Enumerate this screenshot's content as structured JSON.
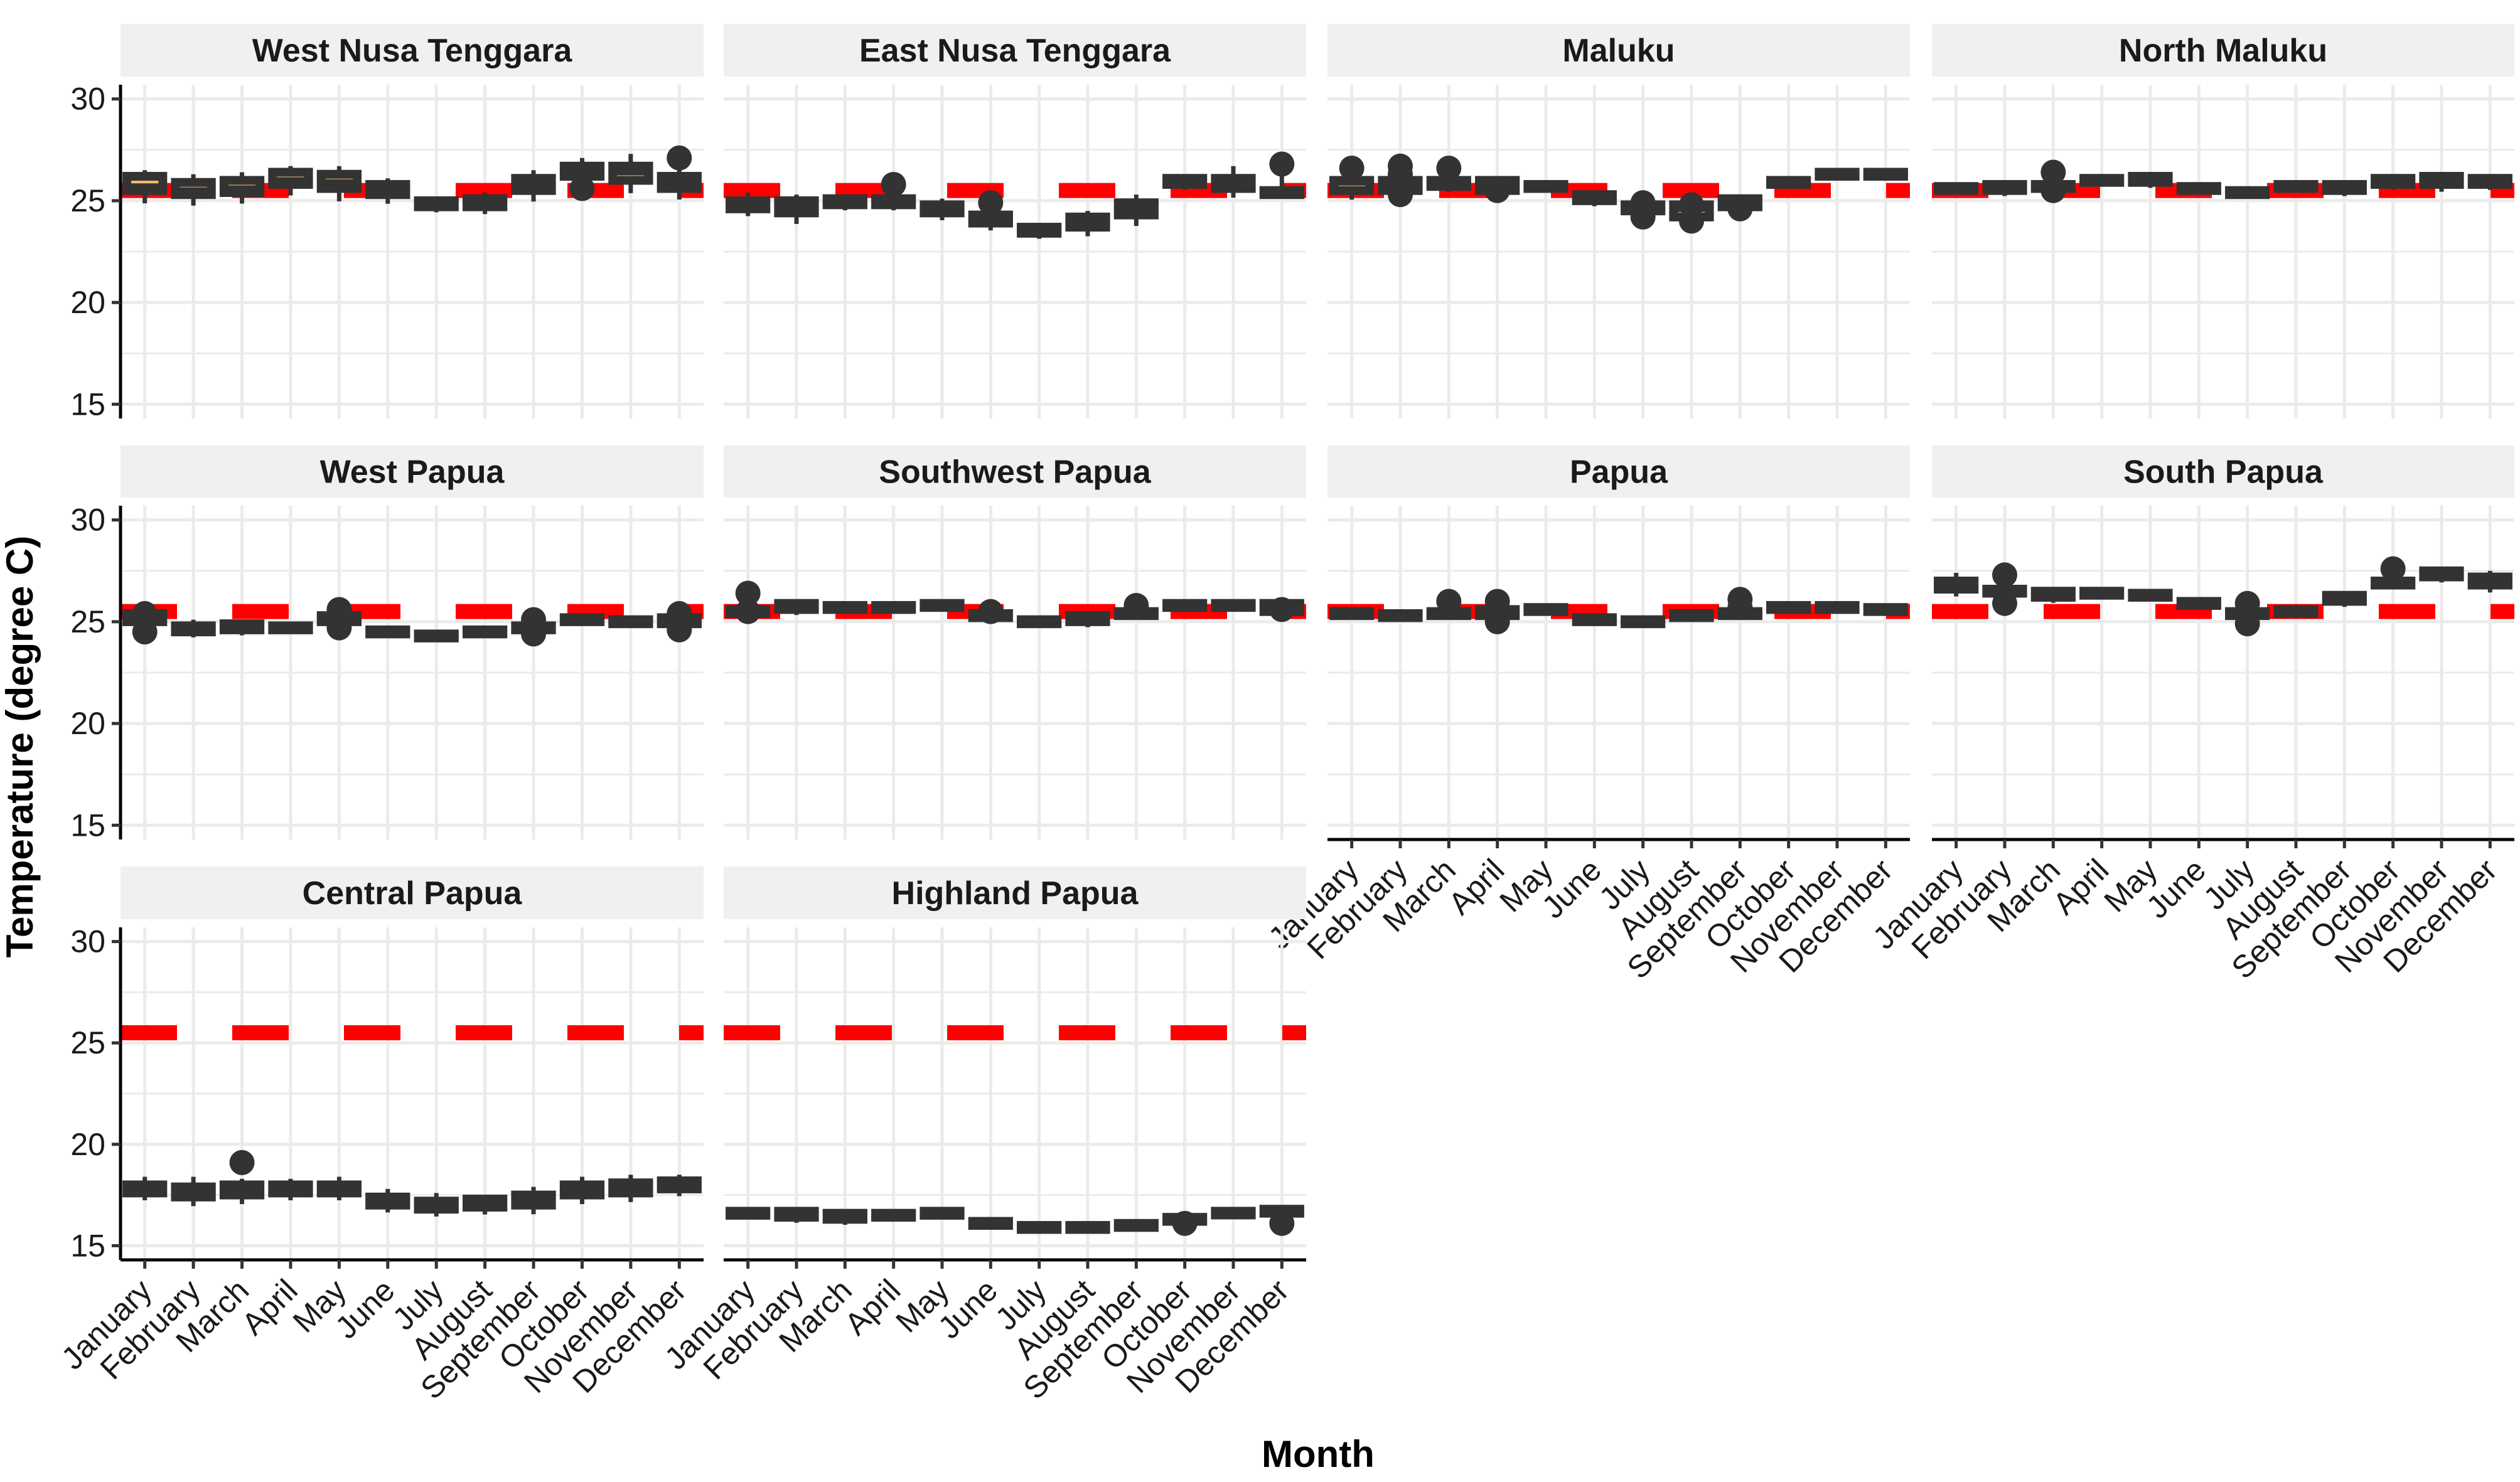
{
  "chart_data": {
    "type": "boxplot-facets",
    "xlabel": "Month",
    "ylabel": "Temperature (degree C)",
    "ylim": [
      14.3,
      30.7
    ],
    "y_ticks": [
      15,
      20,
      25,
      30
    ],
    "reference_line": {
      "value": 25.5,
      "style": "dashed",
      "color": "#ff0000"
    },
    "box_colors": {
      "fill": "#f7b76a",
      "edge": "#333333"
    },
    "months": [
      "January",
      "February",
      "March",
      "April",
      "May",
      "June",
      "July",
      "August",
      "September",
      "October",
      "November",
      "December"
    ],
    "panels": [
      {
        "title": "West Nusa Tenggara",
        "boxes": [
          [
            25.5,
            25.7,
            26.2,
            26.5
          ],
          [
            25.3,
            25.5,
            25.9,
            26.3
          ],
          [
            25.4,
            25.6,
            26.0,
            26.4
          ],
          [
            25.8,
            26.0,
            26.4,
            26.7
          ],
          [
            25.6,
            25.9,
            26.3,
            26.7
          ],
          [
            25.3,
            25.5,
            25.8,
            26.1
          ],
          [
            24.7,
            24.8,
            25.0,
            25.2
          ],
          [
            24.7,
            24.9,
            25.1,
            25.4
          ],
          [
            25.5,
            25.8,
            26.1,
            26.5
          ],
          [
            26.2,
            26.4,
            26.7,
            27.1
          ],
          [
            26.0,
            26.4,
            26.7,
            27.3
          ],
          [
            25.6,
            25.9,
            26.2,
            26.6
          ]
        ],
        "outliers": [
          [
            9,
            25.6
          ],
          [
            11,
            27.1
          ]
        ]
      },
      {
        "title": "East Nusa Tenggara",
        "boxes": [
          [
            24.6,
            24.7,
            25.0,
            25.4
          ],
          [
            24.4,
            24.7,
            25.0,
            25.3
          ],
          [
            24.8,
            24.9,
            25.1,
            25.3
          ],
          [
            24.8,
            24.9,
            25.1,
            25.5
          ],
          [
            24.4,
            24.6,
            24.8,
            25.1
          ],
          [
            23.9,
            24.0,
            24.3,
            24.5
          ],
          [
            23.4,
            23.5,
            23.7,
            23.9
          ],
          [
            23.7,
            23.9,
            24.2,
            24.5
          ],
          [
            24.3,
            24.6,
            24.9,
            25.3
          ],
          [
            25.8,
            25.9,
            26.1,
            26.3
          ],
          [
            25.6,
            25.8,
            26.1,
            26.7
          ],
          [
            25.3,
            25.4,
            25.5,
            26.2
          ]
        ],
        "outliers": [
          [
            3,
            25.8
          ],
          [
            5,
            24.9
          ],
          [
            11,
            26.8
          ]
        ]
      },
      {
        "title": "Maluku",
        "boxes": [
          [
            25.5,
            25.9,
            26.0,
            26.3
          ],
          [
            25.5,
            25.8,
            26.0,
            26.2
          ],
          [
            25.7,
            25.9,
            26.0,
            26.2
          ],
          [
            25.5,
            25.8,
            26.0,
            26.2
          ],
          [
            25.6,
            25.7,
            25.8,
            26.0
          ],
          [
            25.0,
            25.1,
            25.3,
            25.4
          ],
          [
            24.5,
            24.7,
            24.8,
            25.0
          ],
          [
            24.2,
            24.6,
            24.8,
            25.2
          ],
          [
            24.7,
            24.9,
            25.1,
            25.3
          ],
          [
            25.8,
            25.9,
            26.0,
            26.1
          ],
          [
            26.2,
            26.3,
            26.4,
            26.5
          ],
          [
            26.2,
            26.3,
            26.4,
            26.5
          ]
        ],
        "outliers": [
          [
            0,
            26.6
          ],
          [
            1,
            26.7
          ],
          [
            1,
            26.3
          ],
          [
            1,
            25.3
          ],
          [
            2,
            26.6
          ],
          [
            3,
            25.5
          ],
          [
            6,
            24.9
          ],
          [
            6,
            24.2
          ],
          [
            7,
            24.8
          ],
          [
            7,
            24.0
          ],
          [
            8,
            24.6
          ]
        ]
      },
      {
        "title": "North Maluku",
        "boxes": [
          [
            25.5,
            25.6,
            25.7,
            25.9
          ],
          [
            25.5,
            25.7,
            25.8,
            26.0
          ],
          [
            25.6,
            25.7,
            25.8,
            26.0
          ],
          [
            25.9,
            26.0,
            26.1,
            26.3
          ],
          [
            25.9,
            26.0,
            26.2,
            26.4
          ],
          [
            25.5,
            25.6,
            25.7,
            25.8
          ],
          [
            25.3,
            25.4,
            25.5,
            25.6
          ],
          [
            25.6,
            25.7,
            25.8,
            25.9
          ],
          [
            25.5,
            25.6,
            25.8,
            26.0
          ],
          [
            25.8,
            25.9,
            26.1,
            26.3
          ],
          [
            25.8,
            26.0,
            26.2,
            26.4
          ],
          [
            25.8,
            25.9,
            26.1,
            26.3
          ]
        ],
        "outliers": [
          [
            2,
            26.4
          ],
          [
            2,
            25.5
          ]
        ]
      },
      {
        "title": "West Papua",
        "boxes": [
          [
            25.0,
            25.2,
            25.4,
            25.6
          ],
          [
            24.5,
            24.6,
            24.8,
            25.1
          ],
          [
            24.6,
            24.7,
            24.9,
            25.1
          ],
          [
            24.6,
            24.7,
            24.8,
            24.9
          ],
          [
            25.0,
            25.1,
            25.3,
            25.5
          ],
          [
            24.4,
            24.5,
            24.6,
            24.8
          ],
          [
            24.2,
            24.3,
            24.4,
            24.5
          ],
          [
            24.4,
            24.5,
            24.6,
            24.7
          ],
          [
            24.6,
            24.7,
            24.8,
            25.0
          ],
          [
            25.0,
            25.1,
            25.2,
            25.3
          ],
          [
            24.9,
            25.0,
            25.1,
            25.2
          ],
          [
            24.9,
            25.0,
            25.2,
            25.4
          ]
        ],
        "outliers": [
          [
            0,
            25.4
          ],
          [
            0,
            24.5
          ],
          [
            4,
            25.6
          ],
          [
            4,
            24.7
          ],
          [
            8,
            25.1
          ],
          [
            8,
            24.4
          ],
          [
            11,
            25.4
          ],
          [
            11,
            24.6
          ]
        ]
      },
      {
        "title": "Southwest Papua",
        "boxes": [
          [
            25.4,
            25.5,
            25.6,
            25.8
          ],
          [
            25.6,
            25.7,
            25.9,
            26.1
          ],
          [
            25.6,
            25.7,
            25.8,
            25.9
          ],
          [
            25.6,
            25.7,
            25.8,
            25.9
          ],
          [
            25.7,
            25.8,
            25.9,
            26.0
          ],
          [
            25.2,
            25.3,
            25.4,
            25.5
          ],
          [
            24.9,
            25.0,
            25.1,
            25.2
          ],
          [
            25.0,
            25.1,
            25.3,
            25.5
          ],
          [
            25.3,
            25.4,
            25.5,
            25.6
          ],
          [
            25.7,
            25.8,
            25.9,
            25.9
          ],
          [
            25.7,
            25.8,
            25.9,
            26.0
          ],
          [
            25.5,
            25.7,
            25.9,
            26.1
          ]
        ],
        "outliers": [
          [
            0,
            26.4
          ],
          [
            0,
            25.5
          ],
          [
            5,
            25.5
          ],
          [
            8,
            25.8
          ],
          [
            11,
            25.6
          ]
        ]
      },
      {
        "title": "Papua",
        "boxes": [
          [
            25.3,
            25.4,
            25.5,
            25.6
          ],
          [
            25.2,
            25.3,
            25.4,
            25.6
          ],
          [
            25.3,
            25.4,
            25.5,
            25.7
          ],
          [
            25.3,
            25.4,
            25.6,
            25.8
          ],
          [
            25.5,
            25.6,
            25.7,
            25.8
          ],
          [
            25.0,
            25.1,
            25.2,
            25.4
          ],
          [
            24.9,
            25.0,
            25.1,
            25.3
          ],
          [
            25.2,
            25.3,
            25.4,
            25.6
          ],
          [
            25.3,
            25.4,
            25.5,
            25.7
          ],
          [
            25.6,
            25.7,
            25.8,
            25.9
          ],
          [
            25.6,
            25.7,
            25.8,
            25.9
          ],
          [
            25.5,
            25.6,
            25.7,
            25.8
          ]
        ],
        "outliers": [
          [
            2,
            26.0
          ],
          [
            3,
            26.0
          ],
          [
            3,
            25.0
          ],
          [
            8,
            26.1
          ],
          [
            8,
            25.7
          ]
        ]
      },
      {
        "title": "South Papua",
        "boxes": [
          [
            26.6,
            26.8,
            27.0,
            27.4
          ],
          [
            26.4,
            26.5,
            26.6,
            26.9
          ],
          [
            26.2,
            26.3,
            26.5,
            26.7
          ],
          [
            26.3,
            26.4,
            26.5,
            26.6
          ],
          [
            26.2,
            26.3,
            26.4,
            26.6
          ],
          [
            25.8,
            25.9,
            26.0,
            26.1
          ],
          [
            25.3,
            25.4,
            25.5,
            25.8
          ],
          [
            25.4,
            25.5,
            25.6,
            25.7
          ],
          [
            26.0,
            26.1,
            26.3,
            26.5
          ],
          [
            26.8,
            26.9,
            27.0,
            27.2
          ],
          [
            27.2,
            27.3,
            27.5,
            27.6
          ],
          [
            26.8,
            27.0,
            27.2,
            27.5
          ]
        ],
        "outliers": [
          [
            1,
            27.3
          ],
          [
            1,
            25.9
          ],
          [
            6,
            25.9
          ],
          [
            6,
            24.9
          ],
          [
            9,
            27.6
          ]
        ]
      },
      {
        "title": "Central Papua",
        "boxes": [
          [
            17.6,
            17.8,
            18.0,
            18.4
          ],
          [
            17.4,
            17.6,
            17.9,
            18.4
          ],
          [
            17.5,
            17.7,
            18.0,
            18.3
          ],
          [
            17.6,
            17.8,
            18.0,
            18.3
          ],
          [
            17.6,
            17.8,
            18.0,
            18.4
          ],
          [
            17.0,
            17.2,
            17.4,
            17.8
          ],
          [
            16.8,
            17.0,
            17.2,
            17.6
          ],
          [
            16.9,
            17.1,
            17.3,
            17.5
          ],
          [
            17.0,
            17.2,
            17.5,
            17.9
          ],
          [
            17.5,
            17.7,
            18.0,
            18.4
          ],
          [
            17.6,
            17.9,
            18.1,
            18.5
          ],
          [
            17.8,
            18.0,
            18.2,
            18.5
          ]
        ],
        "outliers": [
          [
            2,
            19.1
          ]
        ]
      },
      {
        "title": "Highland Papua",
        "boxes": [
          [
            16.5,
            16.6,
            16.7,
            16.8
          ],
          [
            16.4,
            16.5,
            16.7,
            16.8
          ],
          [
            16.3,
            16.4,
            16.6,
            16.7
          ],
          [
            16.4,
            16.5,
            16.6,
            16.7
          ],
          [
            16.5,
            16.6,
            16.7,
            16.8
          ],
          [
            16.0,
            16.1,
            16.2,
            16.3
          ],
          [
            15.8,
            15.9,
            16.0,
            16.1
          ],
          [
            15.8,
            15.9,
            16.0,
            16.1
          ],
          [
            15.9,
            16.0,
            16.1,
            16.2
          ],
          [
            16.2,
            16.3,
            16.4,
            16.5
          ],
          [
            16.6,
            16.7,
            16.7,
            16.8
          ],
          [
            16.6,
            16.7,
            16.8,
            16.9
          ]
        ],
        "outliers": [
          [
            9,
            16.1
          ],
          [
            11,
            16.1
          ]
        ]
      }
    ]
  }
}
